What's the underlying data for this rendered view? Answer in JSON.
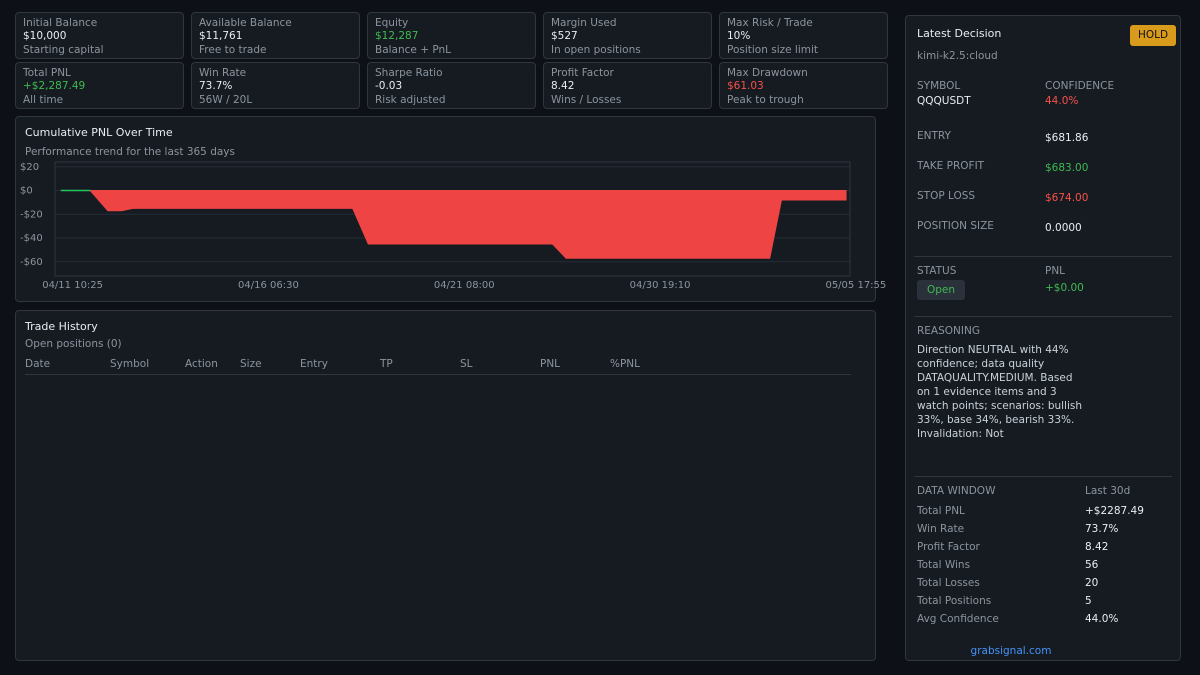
{
  "cards": [
    {
      "label": "Initial Balance",
      "value": "$10,000",
      "note": "Starting capital",
      "tone": "neutral"
    },
    {
      "label": "Available Balance",
      "value": "$11,761",
      "note": "Free to trade",
      "tone": "neutral"
    },
    {
      "label": "Equity",
      "value": "$12,287",
      "note": "Balance + PnL",
      "tone": "positive"
    },
    {
      "label": "Margin Used",
      "value": "$527",
      "note": "In open positions",
      "tone": "neutral"
    },
    {
      "label": "Max Risk / Trade",
      "value": "10%",
      "note": "Position size limit",
      "tone": "neutral"
    },
    {
      "label": "Total PNL",
      "value": "+$2,287.49",
      "note": "All time",
      "tone": "positive"
    },
    {
      "label": "Win Rate",
      "value": "73.7%",
      "note": "56W / 20L",
      "tone": "neutral"
    },
    {
      "label": "Sharpe Ratio",
      "value": "-0.03",
      "note": "Risk adjusted",
      "tone": "neutral"
    },
    {
      "label": "Profit Factor",
      "value": "8.42",
      "note": "Wins / Losses",
      "tone": "neutral"
    },
    {
      "label": "Max Drawdown",
      "value": "$61.03",
      "note": "Peak to trough",
      "tone": "negative"
    }
  ],
  "chart_data": {
    "type": "area",
    "title": "Cumulative PNL Over Time",
    "subtitle": "Performance trend for the last 365 days",
    "x": [
      -0.6,
      0.9,
      1.8,
      2.5,
      3.1,
      14.3,
      15.1,
      24.5,
      25.2,
      35.6,
      36.2,
      39.5
    ],
    "values": [
      0,
      0,
      -17,
      -17,
      -15,
      -15,
      -45,
      -45,
      -57,
      -57,
      -8,
      -8
    ],
    "color": "#ef4444",
    "nonnegative_color": "#22c55e",
    "xlim": [
      -0.9,
      39.7
    ],
    "xticks": [
      {
        "value": 0,
        "label": "04/11 10:25"
      },
      {
        "value": 10,
        "label": "04/16 06:30"
      },
      {
        "value": 20,
        "label": "04/21 08:00"
      },
      {
        "value": 30,
        "label": "04/30 19:10"
      },
      {
        "value": 40,
        "label": "05/05 17:55"
      }
    ],
    "ylim": [
      -72,
      24
    ],
    "yticks": [
      {
        "value": 20,
        "label": "$20"
      },
      {
        "value": 0,
        "label": "$0"
      },
      {
        "value": -20,
        "label": "-$20"
      },
      {
        "value": -40,
        "label": "-$40"
      },
      {
        "value": -60,
        "label": "-$60"
      }
    ],
    "grid": true
  },
  "trade_history": {
    "title": "Trade History",
    "subtitle": "Open positions (0)",
    "columns": [
      "Date",
      "Symbol",
      "Action",
      "Size",
      "Entry",
      "TP",
      "SL",
      "PNL",
      "%PNL"
    ]
  },
  "decision": {
    "title": "Latest Decision",
    "badge": "HOLD",
    "model": "kimi-k2.5:cloud",
    "symbol_label": "SYMBOL",
    "symbol": "QQQUSDT",
    "confidence_label": "CONFIDENCE",
    "confidence": "44.0%",
    "levels": [
      {
        "label": "ENTRY",
        "value": "$681.86",
        "tone": "neutral"
      },
      {
        "label": "TAKE PROFIT",
        "value": "$683.00",
        "tone": "positive"
      },
      {
        "label": "STOP LOSS",
        "value": "$674.00",
        "tone": "negative"
      },
      {
        "label": "POSITION SIZE",
        "value": "0.0000",
        "tone": "neutral"
      }
    ],
    "status_label": "STATUS",
    "status": "Open",
    "pnl_label": "PNL",
    "pnl": "+$0.00",
    "reasoning_label": "REASONING",
    "reasoning": "Direction NEUTRAL with 44% confidence; data quality DATAQUALITY.MEDIUM. Based on 1 evidence items and 3 watch points; scenarios: bullish 33%, base 34%, bearish 33%. Invalidation: Not",
    "window_label": "DATA WINDOW",
    "window": "Last 30d",
    "stats": [
      {
        "label": "Total PNL",
        "value": "+$2287.49"
      },
      {
        "label": "Win Rate",
        "value": "73.7%"
      },
      {
        "label": "Profit Factor",
        "value": "8.42"
      },
      {
        "label": "Total Wins",
        "value": "56"
      },
      {
        "label": "Total Losses",
        "value": "20"
      },
      {
        "label": "Total Positions",
        "value": "5"
      },
      {
        "label": "Avg Confidence",
        "value": "44.0%"
      }
    ],
    "footer": "grabsignal.com"
  }
}
